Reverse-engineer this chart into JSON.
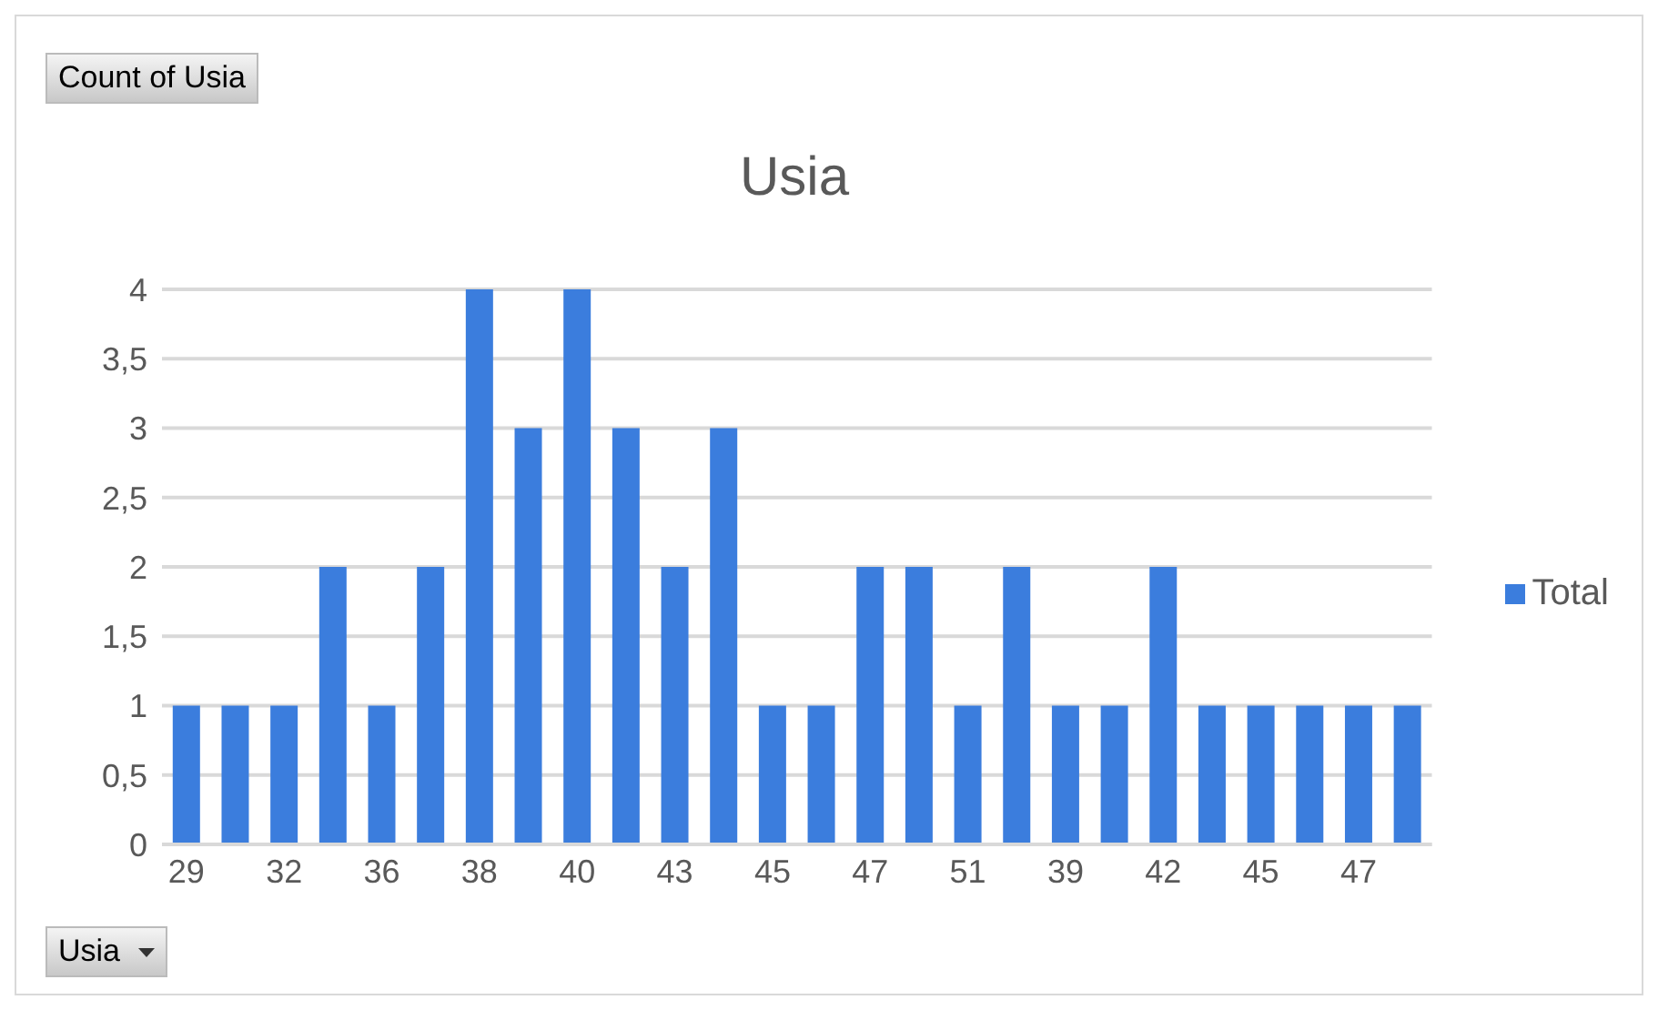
{
  "chart_data": {
    "type": "bar",
    "title": "Usia",
    "categories": [
      "29",
      null,
      "32",
      null,
      "36",
      null,
      "38",
      null,
      "40",
      null,
      "43",
      null,
      "45",
      null,
      "47",
      null,
      "51",
      null,
      "39",
      null,
      "42",
      null,
      "45",
      null,
      "47",
      null
    ],
    "series": [
      {
        "name": "Total",
        "color": "#3b7ddd",
        "values": [
          1,
          1,
          1,
          2,
          1,
          2,
          4,
          3,
          4,
          3,
          2,
          3,
          1,
          1,
          2,
          2,
          1,
          2,
          1,
          1,
          2,
          1,
          1,
          1,
          1,
          1
        ]
      }
    ],
    "ylim": [
      0,
      4
    ],
    "yticks": [
      0,
      {
        "value": 0.5,
        "label": "0,5"
      },
      1,
      {
        "value": 1.5,
        "label": "1,5"
      },
      2,
      {
        "value": 2.5,
        "label": "2,5"
      },
      3,
      {
        "value": 3.5,
        "label": "3,5"
      },
      4
    ],
    "grid": "y",
    "legend": "right",
    "annotations": [
      "Count of Usia",
      "Usia"
    ]
  }
}
